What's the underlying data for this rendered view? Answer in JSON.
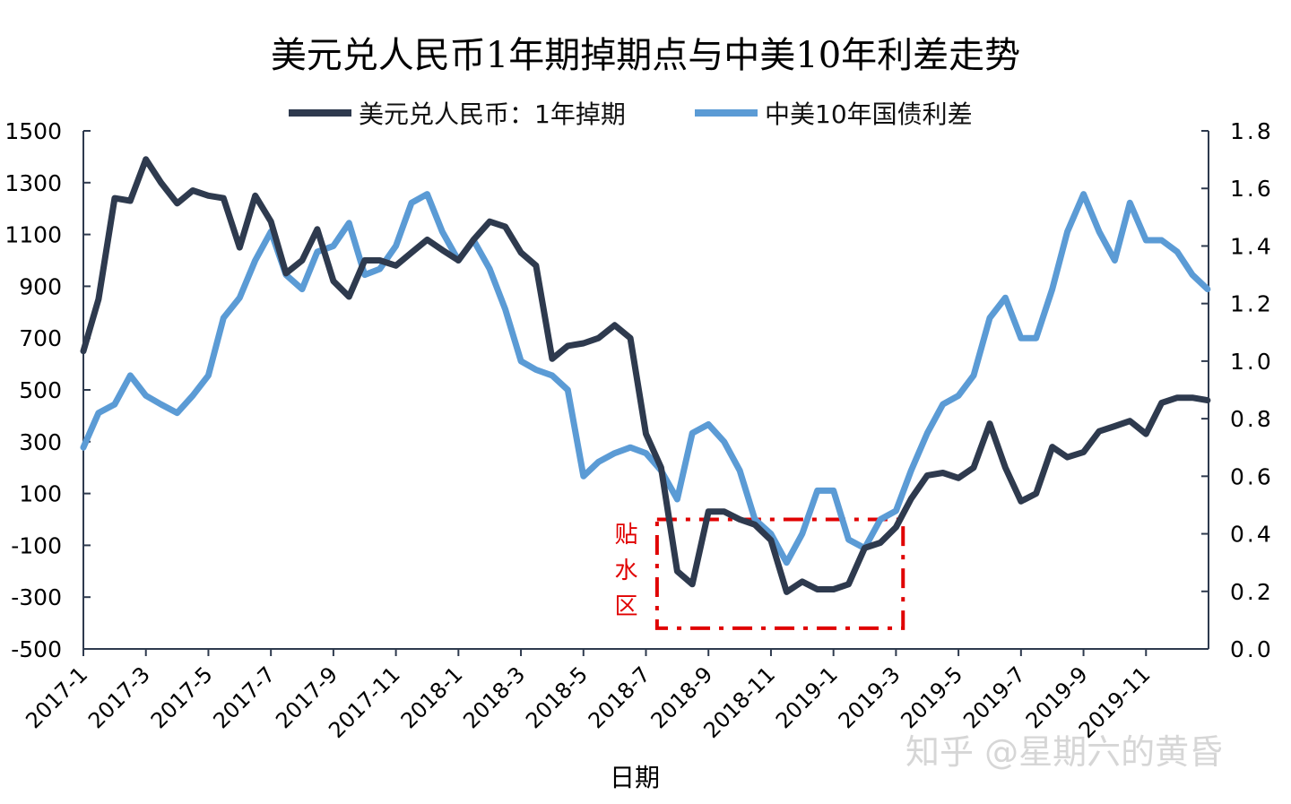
{
  "chart_data": {
    "type": "line",
    "title": "美元兑人民币1年期掉期点与中美10年利差走势",
    "xlabel": "日期",
    "x_ticks": [
      "2017-1",
      "2017-3",
      "2017-5",
      "2017-7",
      "2017-9",
      "2017-11",
      "2018-1",
      "2018-3",
      "2018-5",
      "2018-7",
      "2018-9",
      "2018-11",
      "2019-1",
      "2019-3",
      "2019-5",
      "2019-7",
      "2019-9",
      "2019-11"
    ],
    "xlim": [
      "2017-01-01",
      "2019-12-31"
    ],
    "y_left": {
      "lim": [
        -500,
        1500
      ],
      "ticks": [
        "1500",
        "1300",
        "1100",
        "900",
        "700",
        "500",
        "300",
        "100",
        "-100",
        "-300",
        "-500"
      ]
    },
    "y_right": {
      "lim": [
        0.0,
        1.8
      ],
      "ticks": [
        "1.8",
        "1.6",
        "1.4",
        "1.2",
        "1.0",
        "0.8",
        "0.6",
        "0.4",
        "0.2",
        "0.0"
      ]
    },
    "grid": false,
    "legend": "top-center",
    "x": [
      "2017-01-01",
      "2017-01-16",
      "2017-02-01",
      "2017-02-15",
      "2017-03-01",
      "2017-03-16",
      "2017-04-01",
      "2017-04-16",
      "2017-05-01",
      "2017-05-16",
      "2017-06-01",
      "2017-06-16",
      "2017-07-01",
      "2017-07-16",
      "2017-08-01",
      "2017-08-16",
      "2017-09-01",
      "2017-09-16",
      "2017-10-01",
      "2017-10-16",
      "2017-11-01",
      "2017-11-16",
      "2017-12-01",
      "2017-12-16",
      "2018-01-01",
      "2018-01-16",
      "2018-02-01",
      "2018-02-15",
      "2018-03-01",
      "2018-03-16",
      "2018-04-01",
      "2018-04-16",
      "2018-05-01",
      "2018-05-16",
      "2018-06-01",
      "2018-06-16",
      "2018-07-01",
      "2018-07-16",
      "2018-08-01",
      "2018-08-16",
      "2018-09-01",
      "2018-09-16",
      "2018-10-01",
      "2018-10-16",
      "2018-11-01",
      "2018-11-16",
      "2018-12-01",
      "2018-12-16",
      "2019-01-01",
      "2019-01-16",
      "2019-02-01",
      "2019-02-15",
      "2019-03-01",
      "2019-03-16",
      "2019-04-01",
      "2019-04-16",
      "2019-05-01",
      "2019-05-16",
      "2019-06-01",
      "2019-06-16",
      "2019-07-01",
      "2019-07-16",
      "2019-08-01",
      "2019-08-16",
      "2019-09-01",
      "2019-09-16",
      "2019-10-01",
      "2019-10-16",
      "2019-11-01",
      "2019-11-16",
      "2019-12-01",
      "2019-12-16",
      "2019-12-31"
    ],
    "series": [
      {
        "name": "美元兑人民币：1年掉期",
        "axis": "left",
        "color": "#2e3a4e",
        "values": [
          650,
          850,
          1240,
          1230,
          1390,
          1300,
          1220,
          1270,
          1250,
          1240,
          1050,
          1250,
          1150,
          950,
          1000,
          1120,
          920,
          860,
          1000,
          1000,
          980,
          1030,
          1080,
          1040,
          1000,
          1080,
          1150,
          1130,
          1030,
          980,
          620,
          670,
          680,
          700,
          750,
          700,
          330,
          200,
          -200,
          -250,
          30,
          30,
          0,
          -20,
          -80,
          -280,
          -240,
          -270,
          -270,
          -250,
          -110,
          -90,
          -30,
          80,
          170,
          180,
          160,
          200,
          370,
          200,
          70,
          100,
          280,
          240,
          260,
          340,
          360,
          380,
          330,
          450,
          470,
          470,
          460
        ]
      },
      {
        "name": "中美10年国债利差",
        "axis": "right",
        "color": "#5b9bd5",
        "values": [
          0.7,
          0.82,
          0.85,
          0.95,
          0.88,
          0.85,
          0.82,
          0.88,
          0.95,
          1.15,
          1.22,
          1.35,
          1.45,
          1.3,
          1.25,
          1.38,
          1.4,
          1.48,
          1.3,
          1.32,
          1.4,
          1.55,
          1.58,
          1.45,
          1.35,
          1.42,
          1.32,
          1.18,
          1.0,
          0.97,
          0.95,
          0.9,
          0.6,
          0.65,
          0.68,
          0.7,
          0.68,
          0.62,
          0.52,
          0.75,
          0.78,
          0.72,
          0.62,
          0.45,
          0.4,
          0.3,
          0.4,
          0.55,
          0.55,
          0.38,
          0.35,
          0.45,
          0.48,
          0.62,
          0.75,
          0.85,
          0.88,
          0.95,
          1.15,
          1.22,
          1.08,
          1.08,
          1.25,
          1.45,
          1.58,
          1.45,
          1.35,
          1.55,
          1.42,
          1.42,
          1.38,
          1.3,
          1.25
        ]
      }
    ],
    "annotations": [
      {
        "text": "贴水区",
        "color": "#e00000",
        "x_range": [
          "2018-07-12",
          "2019-03-08"
        ],
        "y_range_left": [
          -420,
          0
        ]
      }
    ]
  },
  "watermark": "知乎 @星期六的黄昏"
}
